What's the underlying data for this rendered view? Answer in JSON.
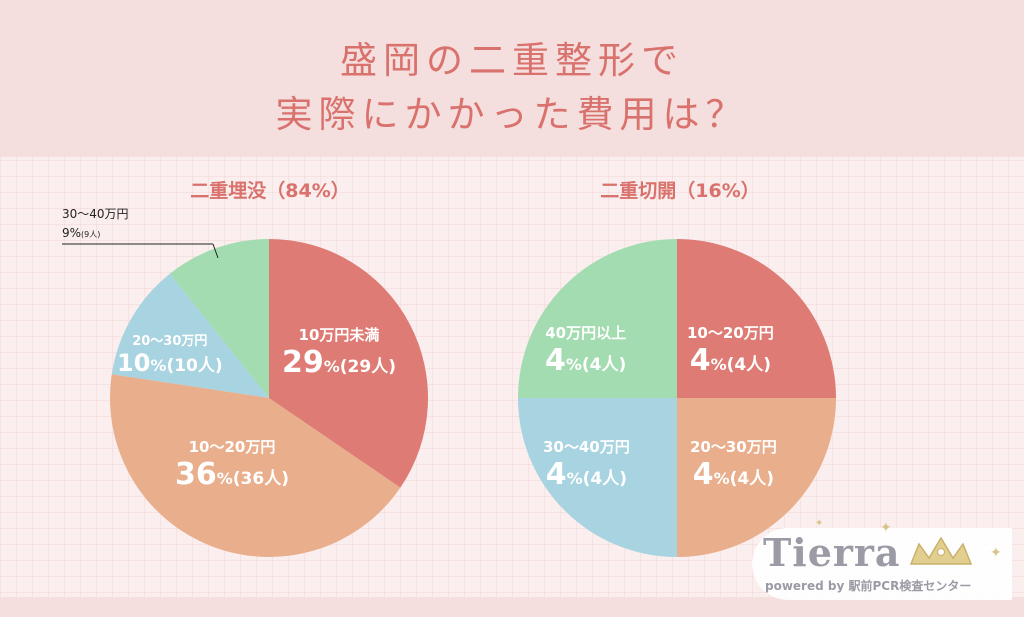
{
  "header": {
    "title_line1": "盛岡の二重整形で",
    "title_line2": "実際にかかった費用は？"
  },
  "chart_data": [
    {
      "type": "pie",
      "title": "二重埋没（84%）",
      "slices": [
        {
          "label": "10万円未満",
          "percent_label": "29",
          "percent_unit": "%",
          "count_label": "(29人)",
          "value": 29,
          "color": "#de7b74"
        },
        {
          "label": "10〜20万円",
          "percent_label": "36",
          "percent_unit": "%",
          "count_label": "(36人)",
          "value": 36,
          "color": "#e9ae8c"
        },
        {
          "label": "20〜30万円",
          "percent_label": "10",
          "percent_unit": "%",
          "count_label": "(10人)",
          "value": 10,
          "color": "#a8d3e0"
        },
        {
          "label": "30〜40万円",
          "percent_label": "9",
          "percent_unit": "%",
          "count_label": "(9人)",
          "value": 9,
          "color": "#a3dcb0"
        }
      ]
    },
    {
      "type": "pie",
      "title": "二重切開（16%）",
      "slices": [
        {
          "label": "10〜20万円",
          "percent_label": "4",
          "percent_unit": "%",
          "count_label": "(4人)",
          "value": 4,
          "color": "#de7b74"
        },
        {
          "label": "20〜30万円",
          "percent_label": "4",
          "percent_unit": "%",
          "count_label": "(4人)",
          "value": 4,
          "color": "#e9ae8c"
        },
        {
          "label": "30〜40万円",
          "percent_label": "4",
          "percent_unit": "%",
          "count_label": "(4人)",
          "value": 4,
          "color": "#a8d3e0"
        },
        {
          "label": "40万円以上",
          "percent_label": "4",
          "percent_unit": "%",
          "count_label": "(4人)",
          "value": 4,
          "color": "#a3dcb0"
        }
      ]
    }
  ],
  "logo": {
    "wordmark": "Tierra",
    "tagline": "powered by 駅前PCR検査センター"
  }
}
